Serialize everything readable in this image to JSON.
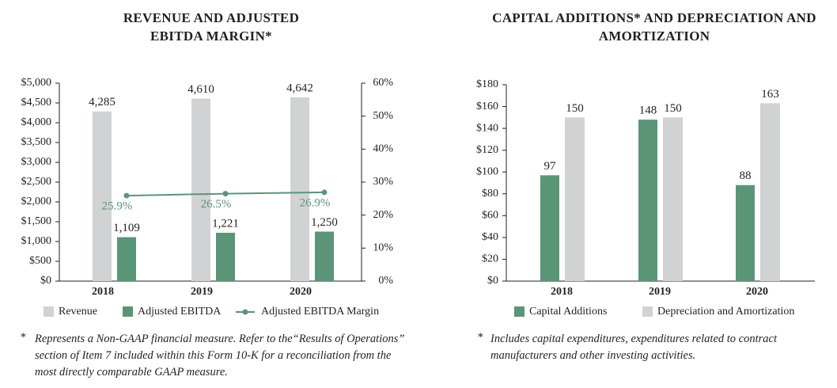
{
  "chart_data": [
    {
      "type": "bar",
      "title": "REVENUE AND ADJUSTED EBITDA MARGIN*",
      "categories": [
        "2018",
        "2019",
        "2020"
      ],
      "series": [
        {
          "name": "Revenue",
          "color": "#d1d2d4",
          "values": [
            4285,
            4610,
            4642
          ],
          "value_labels": [
            "4,285",
            "4,610",
            "4,642"
          ]
        },
        {
          "name": "Adjusted EBITDA",
          "color": "#5b9577",
          "values": [
            1109,
            1221,
            1250
          ],
          "value_labels": [
            "1,109",
            "1,221",
            "1,250"
          ]
        },
        {
          "name": "Adjusted EBITDA Margin",
          "type": "line",
          "axis": "y2",
          "color": "#5b9577",
          "values": [
            25.9,
            26.5,
            26.9
          ],
          "value_labels": [
            "25.9%",
            "26.5%",
            "26.9%"
          ]
        }
      ],
      "ylim": [
        0,
        5000
      ],
      "yticks": [
        {
          "value": 0,
          "label": "$0"
        },
        {
          "value": 500,
          "label": "$500"
        },
        {
          "value": 1000,
          "label": "$1,000"
        },
        {
          "value": 1500,
          "label": "$1,500"
        },
        {
          "value": 2000,
          "label": "$2,000"
        },
        {
          "value": 2500,
          "label": "$2,500"
        },
        {
          "value": 3000,
          "label": "$3,000"
        },
        {
          "value": 3500,
          "label": "$3,500"
        },
        {
          "value": 4000,
          "label": "$4,000"
        },
        {
          "value": 4500,
          "label": "$4,500"
        },
        {
          "value": 5000,
          "label": "$5,000"
        }
      ],
      "y2lim": [
        0,
        60
      ],
      "y2ticks": [
        {
          "value": 0,
          "label": "0%"
        },
        {
          "value": 10,
          "label": "10%"
        },
        {
          "value": 20,
          "label": "20%"
        },
        {
          "value": 30,
          "label": "30%"
        },
        {
          "value": 40,
          "label": "40%"
        },
        {
          "value": 50,
          "label": "50%"
        },
        {
          "value": 60,
          "label": "60%"
        }
      ],
      "grid": false,
      "legend": "bottom",
      "note_marker": "*",
      "note": "Represents a Non-GAAP financial measure. Refer to the“Results of Operations” section of Item 7 included within this Form 10-K for a reconciliation from the most directly comparable GAAP measure."
    },
    {
      "type": "bar",
      "title": "CAPITAL ADDITIONS* AND DEPRECIATION AND AMORTIZATION",
      "categories": [
        "2018",
        "2019",
        "2020"
      ],
      "series": [
        {
          "name": "Capital Additions",
          "color": "#5b9577",
          "values": [
            97,
            148,
            88
          ]
        },
        {
          "name": "Depreciation and Amortization",
          "color": "#d1d2d4",
          "values": [
            150,
            150,
            163
          ]
        }
      ],
      "ylim": [
        0,
        180
      ],
      "yticks": [
        {
          "value": 0,
          "label": "$0"
        },
        {
          "value": 20,
          "label": "$20"
        },
        {
          "value": 40,
          "label": "$40"
        },
        {
          "value": 60,
          "label": "$60"
        },
        {
          "value": 80,
          "label": "$80"
        },
        {
          "value": 100,
          "label": "$100"
        },
        {
          "value": 120,
          "label": "$120"
        },
        {
          "value": 140,
          "label": "$140"
        },
        {
          "value": 160,
          "label": "$160"
        },
        {
          "value": 180,
          "label": "$180"
        }
      ],
      "grid": false,
      "legend": "bottom",
      "note_marker": "*",
      "note": "Includes capital expenditures, expenditures related to contract manufacturers and other investing activities."
    }
  ]
}
